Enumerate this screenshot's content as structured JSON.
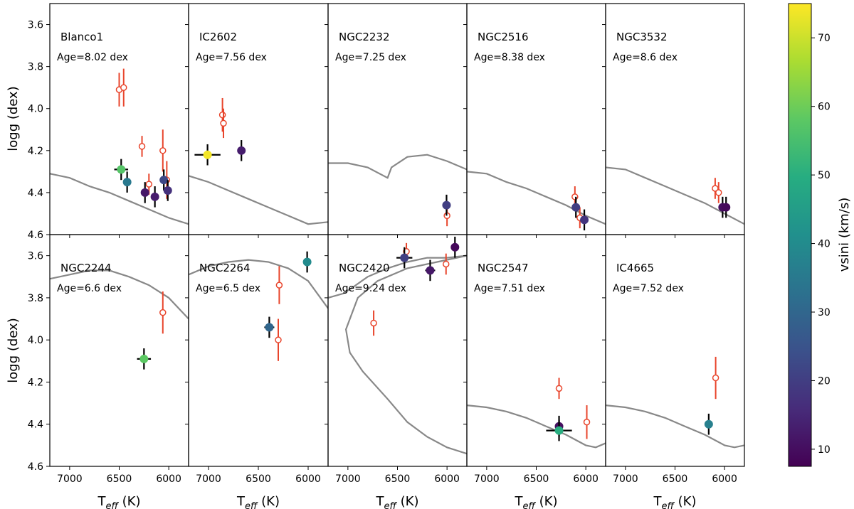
{
  "chart_data": {
    "type": "scatter",
    "xlabel": "T_eff (K)",
    "ylabel": "logg (dex)",
    "xlim": [
      7200,
      5800
    ],
    "ylim": [
      4.6,
      3.5
    ],
    "xticks": [
      7000,
      6500,
      6000
    ],
    "yticks": [
      3.6,
      3.8,
      4.0,
      4.2,
      4.4,
      4.6
    ],
    "colorbar": {
      "label": "vsini (km/s)",
      "min": 7.5,
      "max": 75,
      "ticks": [
        10,
        20,
        30,
        40,
        50,
        60,
        70
      ]
    },
    "open_marker_color": "#e8452c",
    "isochrone_color": "#888888",
    "panels": [
      {
        "name": "Blanco1",
        "age": "Age=8.02 dex",
        "isochrone": [
          [
            7200,
            4.31
          ],
          [
            7000,
            4.33
          ],
          [
            6800,
            4.37
          ],
          [
            6600,
            4.4
          ],
          [
            6400,
            4.44
          ],
          [
            6200,
            4.48
          ],
          [
            6000,
            4.52
          ],
          [
            5800,
            4.55
          ]
        ],
        "open_points": [
          {
            "teff": 6500,
            "logg": 3.91,
            "dteff": 30,
            "dlogg": 0.08
          },
          {
            "teff": 6455,
            "logg": 3.9,
            "dteff": 30,
            "dlogg": 0.09
          },
          {
            "teff": 6270,
            "logg": 4.18,
            "dteff": 0,
            "dlogg": 0.05
          },
          {
            "teff": 6200,
            "logg": 4.36,
            "dteff": 0,
            "dlogg": 0.05
          },
          {
            "teff": 6060,
            "logg": 4.2,
            "dteff": 0,
            "dlogg": 0.1
          },
          {
            "teff": 6020,
            "logg": 4.34,
            "dteff": 0,
            "dlogg": 0.09
          }
        ],
        "filled_points": [
          {
            "teff": 6480,
            "logg": 4.29,
            "vsini": 57,
            "dteff": 70,
            "dlogg": 0.05
          },
          {
            "teff": 6420,
            "logg": 4.35,
            "vsini": 35,
            "dteff": 40,
            "dlogg": 0.05
          },
          {
            "teff": 6240,
            "logg": 4.4,
            "vsini": 12,
            "dteff": 0,
            "dlogg": 0.05
          },
          {
            "teff": 6140,
            "logg": 4.42,
            "vsini": 13,
            "dteff": 0,
            "dlogg": 0.05
          },
          {
            "teff": 6050,
            "logg": 4.34,
            "vsini": 22,
            "dteff": 0,
            "dlogg": 0.05
          },
          {
            "teff": 6010,
            "logg": 4.39,
            "vsini": 17,
            "dteff": 0,
            "dlogg": 0.05
          }
        ]
      },
      {
        "name": "IC2602",
        "age": "Age=7.56 dex",
        "isochrone": [
          [
            7200,
            4.32
          ],
          [
            7000,
            4.35
          ],
          [
            6800,
            4.39
          ],
          [
            6600,
            4.43
          ],
          [
            6400,
            4.47
          ],
          [
            6200,
            4.51
          ],
          [
            6000,
            4.55
          ],
          [
            5800,
            4.54
          ]
        ],
        "open_points": [
          {
            "teff": 6860,
            "logg": 4.03,
            "dteff": 0,
            "dlogg": 0.08
          },
          {
            "teff": 6850,
            "logg": 4.07,
            "dteff": 0,
            "dlogg": 0.07
          }
        ],
        "filled_points": [
          {
            "teff": 7010,
            "logg": 4.22,
            "vsini": 74,
            "dteff": 130,
            "dlogg": 0.05
          },
          {
            "teff": 6670,
            "logg": 4.2,
            "vsini": 13,
            "dteff": 0,
            "dlogg": 0.05
          }
        ]
      },
      {
        "name": "NGC2232",
        "age": "Age=7.25 dex",
        "isochrone": [
          [
            7200,
            4.26
          ],
          [
            7000,
            4.26
          ],
          [
            6800,
            4.28
          ],
          [
            6600,
            4.33
          ],
          [
            6560,
            4.28
          ],
          [
            6400,
            4.23
          ],
          [
            6200,
            4.22
          ],
          [
            6000,
            4.25
          ],
          [
            5800,
            4.29
          ]
        ],
        "open_points": [
          {
            "teff": 6000,
            "logg": 4.51,
            "dteff": 0,
            "dlogg": 0.05
          }
        ],
        "filled_points": [
          {
            "teff": 6005,
            "logg": 4.46,
            "vsini": 20,
            "dteff": 0,
            "dlogg": 0.05
          }
        ]
      },
      {
        "name": "NGC2516",
        "age": "Age=8.38 dex",
        "isochrone": [
          [
            7200,
            4.3
          ],
          [
            7000,
            4.31
          ],
          [
            6800,
            4.35
          ],
          [
            6600,
            4.38
          ],
          [
            6400,
            4.42
          ],
          [
            6200,
            4.46
          ],
          [
            6000,
            4.51
          ],
          [
            5800,
            4.55
          ]
        ],
        "open_points": [
          {
            "teff": 6110,
            "logg": 4.42,
            "dteff": 0,
            "dlogg": 0.05
          },
          {
            "teff": 6060,
            "logg": 4.52,
            "dteff": 0,
            "dlogg": 0.05
          }
        ],
        "filled_points": [
          {
            "teff": 6100,
            "logg": 4.47,
            "vsini": 20,
            "dteff": 0,
            "dlogg": 0.05
          },
          {
            "teff": 6015,
            "logg": 4.53,
            "vsini": 18,
            "dteff": 0,
            "dlogg": 0.05
          }
        ]
      },
      {
        "name": "NGC3532",
        "age": "Age=8.6 dex",
        "isochrone": [
          [
            7200,
            4.28
          ],
          [
            7000,
            4.29
          ],
          [
            6800,
            4.33
          ],
          [
            6600,
            4.37
          ],
          [
            6400,
            4.41
          ],
          [
            6200,
            4.45
          ],
          [
            6000,
            4.5
          ],
          [
            5800,
            4.55
          ]
        ],
        "open_points": [
          {
            "teff": 6095,
            "logg": 4.38,
            "dteff": 0,
            "dlogg": 0.05
          },
          {
            "teff": 6060,
            "logg": 4.4,
            "dteff": 0,
            "dlogg": 0.05
          }
        ],
        "filled_points": [
          {
            "teff": 6020,
            "logg": 4.47,
            "vsini": 10,
            "dteff": 0,
            "dlogg": 0.05
          },
          {
            "teff": 5985,
            "logg": 4.47,
            "vsini": 9,
            "dteff": 0,
            "dlogg": 0.05
          }
        ]
      },
      {
        "name": "NGC2244",
        "age": "Age=6.6 dex",
        "isochrone": [
          [
            7200,
            3.71
          ],
          [
            7000,
            3.69
          ],
          [
            6800,
            3.67
          ],
          [
            6600,
            3.67
          ],
          [
            6400,
            3.7
          ],
          [
            6200,
            3.74
          ],
          [
            6000,
            3.8
          ],
          [
            5800,
            3.9
          ]
        ],
        "open_points": [
          {
            "teff": 6060,
            "logg": 3.87,
            "dteff": 30,
            "dlogg": 0.1
          }
        ],
        "filled_points": [
          {
            "teff": 6250,
            "logg": 4.09,
            "vsini": 58,
            "dteff": 70,
            "dlogg": 0.05
          }
        ]
      },
      {
        "name": "NGC2264",
        "age": "Age=6.5 dex",
        "isochrone": [
          [
            7200,
            3.69
          ],
          [
            7000,
            3.65
          ],
          [
            6800,
            3.63
          ],
          [
            6600,
            3.62
          ],
          [
            6400,
            3.63
          ],
          [
            6200,
            3.66
          ],
          [
            6000,
            3.72
          ],
          [
            5800,
            3.85
          ]
        ],
        "open_points": [
          {
            "teff": 6290,
            "logg": 3.74,
            "dteff": 0,
            "dlogg": 0.09
          },
          {
            "teff": 6300,
            "logg": 4.0,
            "dteff": 0,
            "dlogg": 0.1
          }
        ],
        "filled_points": [
          {
            "teff": 6390,
            "logg": 3.94,
            "vsini": 30,
            "dteff": 50,
            "dlogg": 0.05
          },
          {
            "teff": 6010,
            "logg": 3.63,
            "vsini": 40,
            "dteff": 0,
            "dlogg": 0.05
          }
        ]
      },
      {
        "name": "NGC2420",
        "age": "Age=9.24 dex",
        "isochrone": [
          [
            7200,
            3.8
          ],
          [
            7050,
            3.78
          ],
          [
            6950,
            3.75
          ],
          [
            6800,
            3.7
          ],
          [
            6600,
            3.66
          ],
          [
            6400,
            3.63
          ],
          [
            6200,
            3.61
          ],
          [
            6000,
            3.61
          ],
          [
            5800,
            3.6
          ],
          [
            6100,
            3.63
          ],
          [
            6400,
            3.66
          ],
          [
            6700,
            3.72
          ],
          [
            6900,
            3.8
          ],
          [
            7020,
            3.95
          ],
          [
            6980,
            4.06
          ],
          [
            6850,
            4.15
          ],
          [
            6600,
            4.28
          ],
          [
            6400,
            4.39
          ],
          [
            6200,
            4.46
          ],
          [
            6000,
            4.51
          ],
          [
            5800,
            4.54
          ]
        ],
        "open_points": [
          {
            "teff": 6740,
            "logg": 3.92,
            "dteff": 0,
            "dlogg": 0.06
          },
          {
            "teff": 6410,
            "logg": 3.58,
            "dteff": 0,
            "dlogg": 0.04
          },
          {
            "teff": 6010,
            "logg": 3.64,
            "dteff": 0,
            "dlogg": 0.05
          }
        ],
        "filled_points": [
          {
            "teff": 6430,
            "logg": 3.61,
            "vsini": 20,
            "dteff": 80,
            "dlogg": 0.05
          },
          {
            "teff": 6170,
            "logg": 3.67,
            "vsini": 12,
            "dteff": 50,
            "dlogg": 0.05
          },
          {
            "teff": 5920,
            "logg": 3.56,
            "vsini": 9,
            "dteff": 0,
            "dlogg": 0.05
          }
        ]
      },
      {
        "name": "NGC2547",
        "age": "Age=7.51 dex",
        "isochrone": [
          [
            7200,
            4.31
          ],
          [
            7000,
            4.32
          ],
          [
            6800,
            4.34
          ],
          [
            6600,
            4.37
          ],
          [
            6400,
            4.41
          ],
          [
            6200,
            4.45
          ],
          [
            6000,
            4.5
          ],
          [
            5900,
            4.51
          ],
          [
            5800,
            4.49
          ]
        ],
        "open_points": [
          {
            "teff": 6270,
            "logg": 4.23,
            "dteff": 0,
            "dlogg": 0.05
          },
          {
            "teff": 5990,
            "logg": 4.39,
            "dteff": 0,
            "dlogg": 0.08
          }
        ],
        "filled_points": [
          {
            "teff": 6270,
            "logg": 4.41,
            "vsini": 10,
            "dteff": 0,
            "dlogg": 0.05
          },
          {
            "teff": 6270,
            "logg": 4.43,
            "vsini": 50,
            "dteff": 130,
            "dlogg": 0.05
          }
        ]
      },
      {
        "name": "IC4665",
        "age": "Age=7.52 dex",
        "isochrone": [
          [
            7200,
            4.31
          ],
          [
            7000,
            4.32
          ],
          [
            6800,
            4.34
          ],
          [
            6600,
            4.37
          ],
          [
            6400,
            4.41
          ],
          [
            6200,
            4.45
          ],
          [
            6000,
            4.5
          ],
          [
            5900,
            4.51
          ],
          [
            5800,
            4.5
          ]
        ],
        "open_points": [
          {
            "teff": 6090,
            "logg": 4.18,
            "dteff": 30,
            "dlogg": 0.1
          }
        ],
        "filled_points": [
          {
            "teff": 6160,
            "logg": 4.4,
            "vsini": 37,
            "dteff": 30,
            "dlogg": 0.05
          }
        ]
      }
    ]
  }
}
